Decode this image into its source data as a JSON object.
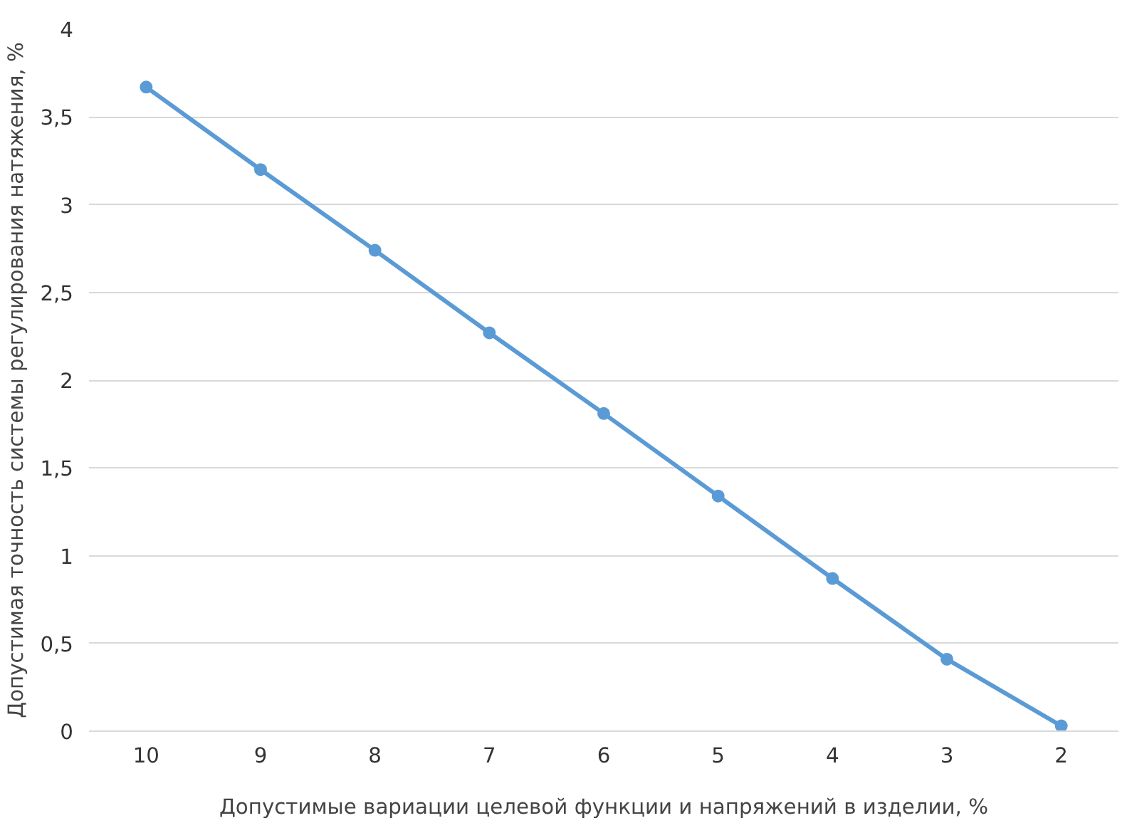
{
  "chart_data": {
    "type": "line",
    "xlabel": "Допустимые вариации целевой функции и напряжений в изделии, %",
    "ylabel": "Допустимая точность системы регулирования натяжения, %",
    "categories": [
      "10",
      "9",
      "8",
      "7",
      "6",
      "5",
      "4",
      "3",
      "2"
    ],
    "series": [
      {
        "color": "#5b9bd5",
        "values": [
          3.67,
          3.2,
          2.74,
          2.27,
          1.81,
          1.34,
          0.87,
          0.41,
          0.03
        ]
      }
    ],
    "ylim": [
      0,
      4
    ],
    "yticks": [
      0,
      {
        "value": 0.5,
        "label": "0,5"
      },
      1,
      {
        "value": 1.5,
        "label": "1,5"
      },
      2,
      {
        "value": 2.5,
        "label": "2,5"
      },
      3,
      {
        "value": 3.5,
        "label": "3,5"
      },
      4
    ],
    "grid": "y",
    "marker": "circle",
    "line_style": "solid"
  }
}
